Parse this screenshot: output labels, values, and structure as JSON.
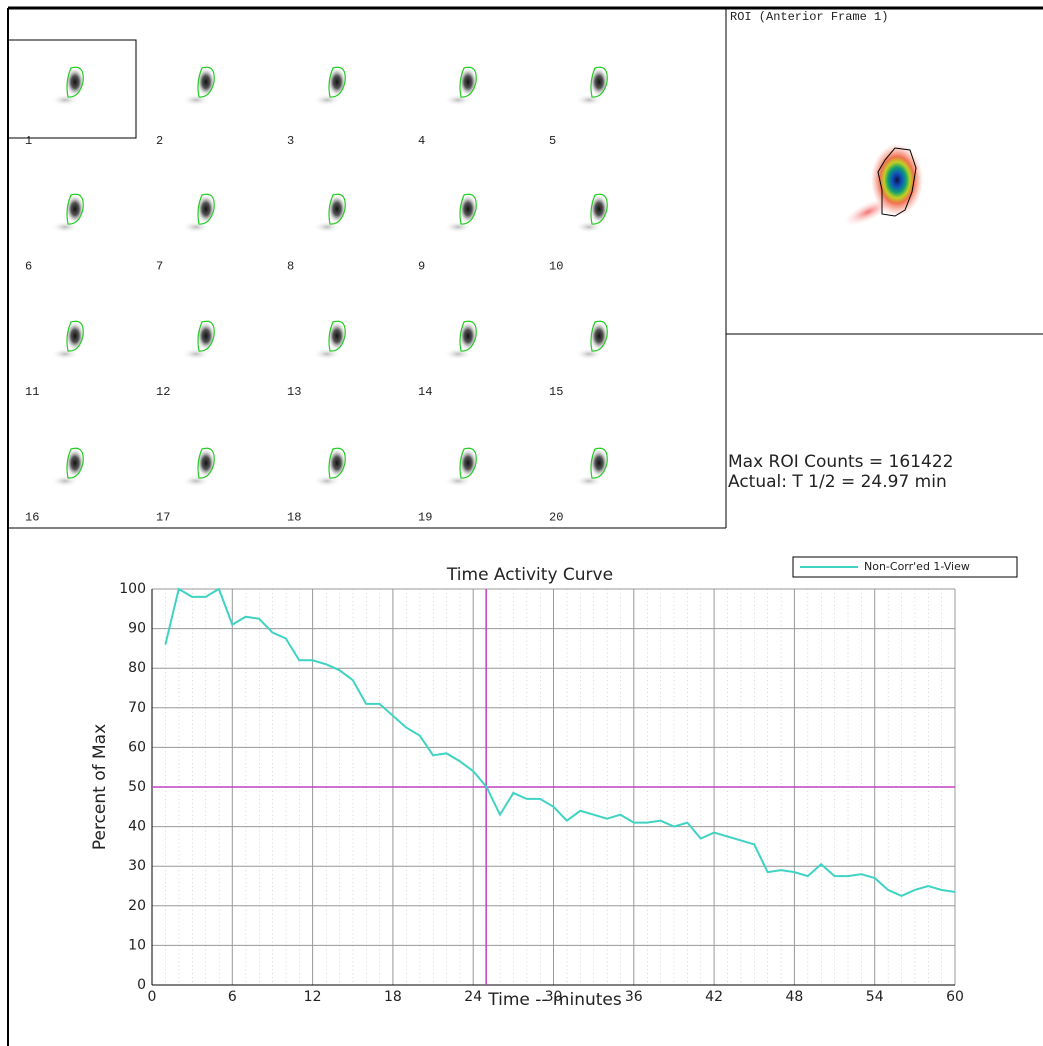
{
  "frames": {
    "labels": [
      "1",
      "2",
      "3",
      "4",
      "5",
      "6",
      "7",
      "8",
      "9",
      "10",
      "11",
      "12",
      "13",
      "14",
      "15",
      "16",
      "17",
      "18",
      "19",
      "20"
    ]
  },
  "roi_panel": {
    "title": "ROI (Anterior Frame 1)"
  },
  "stats": {
    "max_counts": "Max ROI Counts = 161422",
    "half_time": "Actual: T 1/2 = 24.97 min"
  },
  "chart_data": {
    "type": "line",
    "title": "Time Activity Curve",
    "x_label": "Time -- minutes",
    "y_label": "Percent of Max",
    "x": [
      1,
      2,
      3,
      4,
      5,
      6,
      7,
      8,
      9,
      10,
      11,
      12,
      13,
      14,
      15,
      16,
      17,
      18,
      19,
      20,
      21,
      22,
      23,
      24,
      25,
      26,
      27,
      28,
      29,
      30,
      31,
      32,
      33,
      34,
      35,
      36,
      37,
      38,
      39,
      40,
      41,
      42,
      43,
      44,
      45,
      46,
      47,
      48,
      49,
      50,
      51,
      52,
      53,
      54,
      55,
      56,
      57,
      58,
      59,
      60
    ],
    "series": [
      {
        "name": "Non-Corr'ed 1-View",
        "color": "#3fd3c3",
        "values": [
          86,
          100,
          98,
          98,
          100,
          91,
          93,
          92.5,
          89,
          87.5,
          82,
          82,
          81,
          79.5,
          77,
          71,
          71,
          68,
          65,
          63,
          58,
          58.5,
          56.5,
          54,
          50,
          43,
          48.5,
          47,
          47,
          45,
          41.5,
          44,
          43,
          42,
          43,
          41,
          41,
          41.5,
          40,
          41,
          37,
          38.5,
          37.5,
          36.5,
          35.5,
          28.5,
          29,
          28.5,
          27.5,
          30.5,
          27.5,
          27.5,
          28,
          27,
          24,
          22.5,
          24,
          25,
          24,
          23.5
        ]
      }
    ],
    "xlim": [
      0,
      60
    ],
    "xticks": [
      0,
      6,
      12,
      18,
      24,
      30,
      36,
      42,
      48,
      54,
      60
    ],
    "ylim": [
      0,
      100
    ],
    "yticks": [
      0,
      10,
      20,
      30,
      40,
      50,
      60,
      70,
      80,
      90,
      100
    ],
    "grid": true,
    "legend": "top-right",
    "reference_lines": {
      "x": 24.97,
      "y": 50,
      "color": "#c040c0"
    }
  }
}
